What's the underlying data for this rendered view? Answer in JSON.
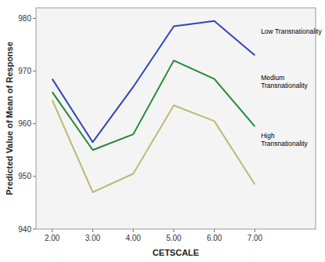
{
  "chart_data": {
    "type": "line",
    "xlabel": "CETSCALE",
    "ylabel": "Predicted Value of Mean of Response",
    "x": [
      2.0,
      3.0,
      4.0,
      5.0,
      6.0,
      7.0
    ],
    "series": [
      {
        "color": "#3344bb",
        "values": [
          968.5,
          956.5,
          967.0,
          978.5,
          979.5,
          973.0
        ]
      },
      {
        "color": "#228833",
        "values": [
          966.0,
          955.0,
          958.0,
          972.0,
          968.5,
          959.5
        ]
      },
      {
        "color": "#bbbb77",
        "values": [
          964.5,
          947.0,
          950.5,
          963.5,
          960.5,
          948.5
        ]
      }
    ],
    "annotations": [
      {
        "text": "Low Transnationality",
        "x": 7.15,
        "y": 977.5
      },
      {
        "text": "Medium\nTransnationality",
        "x": 7.15,
        "y": 968.0
      },
      {
        "text": "High\nTransnationality",
        "x": 7.15,
        "y": 957.0
      }
    ],
    "xlim": [
      1.6,
      8.5
    ],
    "ylim": [
      940,
      982
    ],
    "xticks": [
      {
        "value": 2.0,
        "label": "2.00"
      },
      {
        "value": 3.0,
        "label": "3.00"
      },
      {
        "value": 4.0,
        "label": "4.00"
      },
      {
        "value": 5.0,
        "label": "5.00"
      },
      {
        "value": 6.0,
        "label": "6.00"
      },
      {
        "value": 7.0,
        "label": "7.00"
      }
    ],
    "yticks": [
      940,
      950,
      960,
      970,
      980
    ],
    "grid": false
  }
}
